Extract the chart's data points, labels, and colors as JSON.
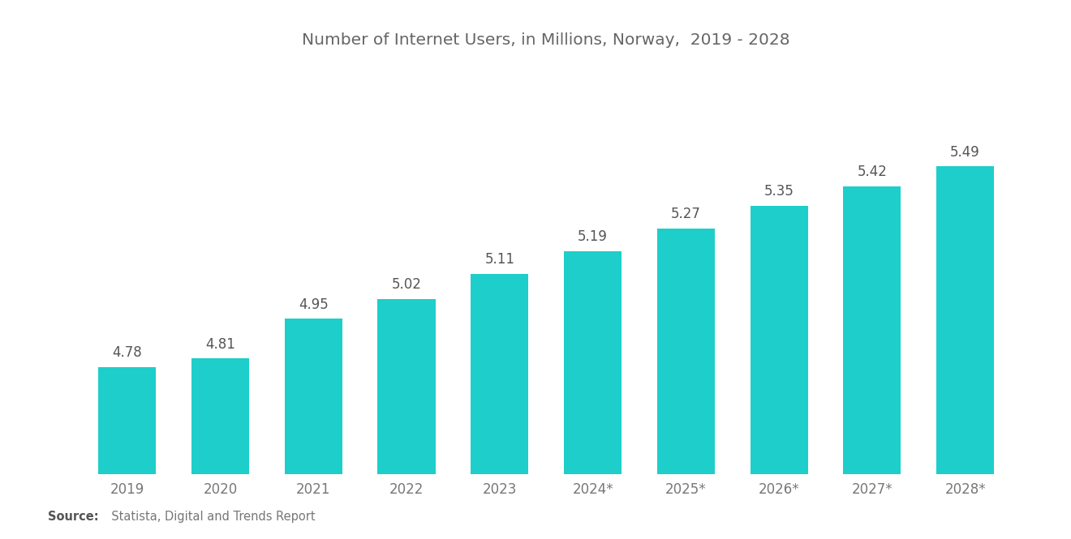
{
  "title": "Number of Internet Users, in Millions, Norway,  2019 - 2028",
  "categories": [
    "2019",
    "2020",
    "2021",
    "2022",
    "2023",
    "2024*",
    "2025*",
    "2026*",
    "2027*",
    "2028*"
  ],
  "values": [
    4.78,
    4.81,
    4.95,
    5.02,
    5.11,
    5.19,
    5.27,
    5.35,
    5.42,
    5.49
  ],
  "bar_color": "#1ECECA",
  "background_color": "#ffffff",
  "title_fontsize": 14.5,
  "tick_fontsize": 12,
  "value_fontsize": 12,
  "source_bold": "Source:",
  "source_text": "  Statista, Digital and Trends Report",
  "ylim": [
    4.4,
    5.85
  ],
  "bar_width": 0.62,
  "title_color": "#666666",
  "tick_color": "#777777",
  "value_color": "#555555"
}
